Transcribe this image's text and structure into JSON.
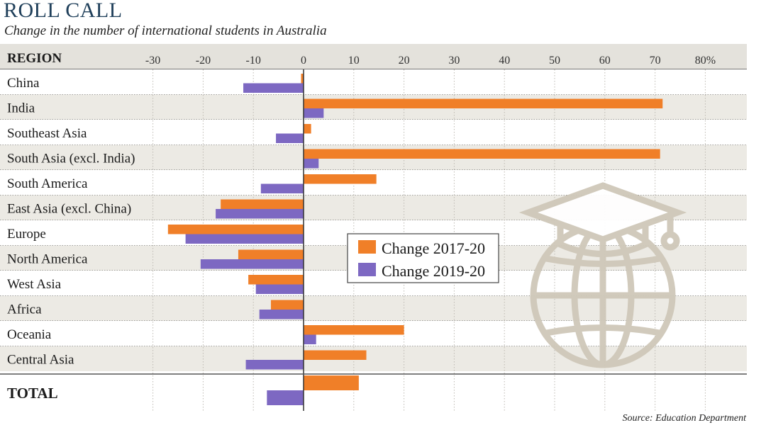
{
  "title": "ROLL CALL",
  "subtitle": "Change in the number of international students in Australia",
  "source": "Source: Education Department",
  "region_header": "REGION",
  "chart_data": {
    "type": "bar",
    "orientation": "horizontal",
    "categories": [
      "China",
      "India",
      "Southeast Asia",
      "South Asia (excl. India)",
      "South America",
      "East Asia (excl. China)",
      "Europe",
      "North America",
      "West Asia",
      "Africa",
      "Oceania",
      "Central Asia",
      "TOTAL"
    ],
    "series": [
      {
        "name": "Change 2017-20",
        "color": "#f07f28",
        "values": [
          -0.5,
          71.5,
          1.5,
          71,
          14.5,
          -16.5,
          -27,
          -13,
          -11,
          -6.5,
          20,
          12.5,
          11
        ]
      },
      {
        "name": "Change 2019-20",
        "color": "#7d68c2",
        "values": [
          -12,
          4,
          -5.5,
          3,
          -8.5,
          -17.5,
          -23.5,
          -20.5,
          -9.5,
          -8.8,
          2.5,
          -11.5,
          -7.3
        ]
      }
    ],
    "xticks": [
      "-30",
      "-20",
      "-10",
      "0",
      "10",
      "20",
      "30",
      "40",
      "50",
      "60",
      "70",
      "80%"
    ],
    "tick_values": [
      -30,
      -20,
      -10,
      0,
      10,
      20,
      30,
      40,
      50,
      60,
      70,
      80
    ],
    "xlim": [
      -32.5,
      88
    ],
    "grid": true,
    "legend_position": "center-right"
  }
}
